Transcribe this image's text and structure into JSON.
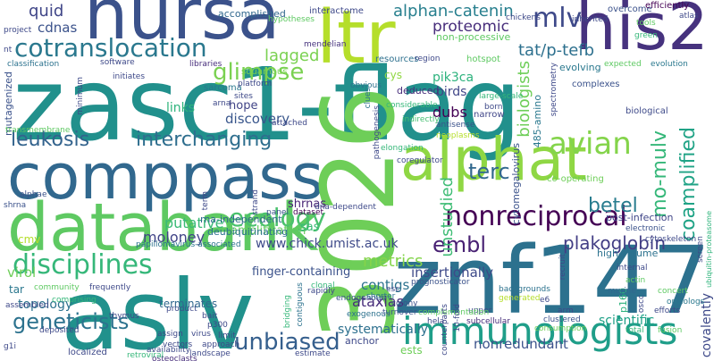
{
  "words": {
    "zasc1_flag": {
      "text": "zasc1-flag",
      "color": "#21908c"
    },
    "nursa": {
      "text": "nursa",
      "color": "#3b528b"
    },
    "compass": {
      "text": "comppass",
      "color": "#31688e"
    },
    "databank": {
      "text": "databank",
      "color": "#5ec962"
    },
    "aslv": {
      "text": "aslv",
      "color": "#21918c"
    },
    "n3026": {
      "text": "3026",
      "color": "#6ece58"
    },
    "znf147": {
      "text": "znf147",
      "color": "#2c718e"
    },
    "alphat": {
      "text": "alphat",
      "color": "#8fd744"
    },
    "ltr": {
      "text": "ltr",
      "color": "#b5de2b"
    },
    "his2": {
      "text": "his2",
      "color": "#46327e"
    },
    "immunologists": {
      "text": "immunologists",
      "color": "#1f9e89"
    },
    "cotranslocation": {
      "text": "cotranslocation",
      "color": "#2a788e"
    },
    "disciplines": {
      "text": "disciplines",
      "color": "#35b779"
    },
    "nonreciprocal": {
      "text": "nonreciprocal",
      "color": "#440154"
    },
    "avian": {
      "text": "avian",
      "color": "#84d44b"
    },
    "mlv": {
      "text": "mlv",
      "color": "#3e4989"
    },
    "glimpse": {
      "text": "glimpse",
      "color": "#7ad151"
    },
    "interchanging": {
      "text": "interchanging",
      "color": "#2e6e8e"
    },
    "leukosis": {
      "text": "leukosis",
      "color": "#33638d"
    },
    "ecology": {
      "text": "ecology",
      "color": "#4ac16d"
    },
    "geneticists": {
      "text": "geneticists",
      "color": "#2c728e"
    },
    "unbiased": {
      "text": "unbiased",
      "color": "#355f8d"
    },
    "embl": {
      "text": "embl",
      "color": "#482173"
    },
    "betel": {
      "text": "betel",
      "color": "#287c8e"
    },
    "terc": {
      "text": "terc",
      "color": "#31688e"
    },
    "coamplified": {
      "text": "coamplified",
      "color": "#20a386"
    },
    "mo_mulv": {
      "text": "mo-mulv",
      "color": "#35b779"
    },
    "plakoglobin": {
      "text": "plakoglobin",
      "color": "#433e85"
    },
    "alphan_catenin": {
      "text": "alphan-catenin",
      "color": "#277f8e"
    },
    "quid": {
      "text": "quid",
      "color": "#404688"
    },
    "cdnas": {
      "text": "cdnas",
      "color": "#3b528b"
    },
    "lagged": {
      "text": "lagged",
      "color": "#7ad151"
    },
    "tat_p_tefb": {
      "text": "tat/p-tefb",
      "color": "#2d708e"
    },
    "proteomic": {
      "text": "proteomic",
      "color": "#472d7b"
    },
    "biologists": {
      "text": "biologists",
      "color": "#6ece58"
    },
    "unstudied": {
      "text": "unstudied",
      "color": "#3dbc74"
    },
    "metrics": {
      "text": "metrics",
      "color": "#84d44b"
    },
    "moloney": {
      "text": "moloney",
      "color": "#414487"
    },
    "putative": {
      "text": "putative",
      "color": "#3aba76"
    },
    "virol": {
      "text": "virol",
      "color": "#6ece58"
    },
    "topology": {
      "text": "topology",
      "color": "#2c728e"
    },
    "contigs": {
      "text": "contigs",
      "color": "#2c728e"
    },
    "ataxias": {
      "text": "ataxias",
      "color": "#472c7a"
    },
    "dubs": {
      "text": "dubs",
      "color": "#440154"
    },
    "discovery": {
      "text": "discovery",
      "color": "#39568c"
    },
    "insertionally": {
      "text": "insertionally",
      "color": "#3e4a89"
    },
    "url": {
      "text": "www.chick.umist.ac.uk",
      "color": "#3e4a89"
    },
    "birds": {
      "text": "birds",
      "color": "#404688"
    },
    "pik3ca": {
      "text": "pik3ca",
      "color": "#2db27d"
    },
    "finger_containing": {
      "text": "finger-containing",
      "color": "#3b528b"
    },
    "amplification": {
      "text": "amplification",
      "color": "#63cb5f"
    },
    "systematically": {
      "text": "systematically",
      "color": "#2d708e"
    },
    "scientific": {
      "text": "scientific",
      "color": "#1fa187"
    },
    "nonredundant": {
      "text": "nonredundant",
      "color": "#3b528b"
    },
    "covalently": {
      "text": "covalently",
      "color": "#3e4989"
    },
    "shrnas": {
      "text": "shrnas",
      "color": "#482475"
    },
    "sas": {
      "text": "sas",
      "color": "#3aba76"
    },
    "tar": {
      "text": "tar",
      "color": "#2a778e"
    },
    "links": {
      "text": "links",
      "color": "#2fb47c"
    },
    "hope": {
      "text": "hope",
      "color": "#414487"
    },
    "cmv": {
      "text": "cmv",
      "color": "#b5de2b"
    },
    "ests": {
      "text": "ests",
      "color": "#6ece58"
    },
    "rna_independent": {
      "text": "rna-independent",
      "color": "#31688e"
    },
    "p160": {
      "text": "p160",
      "color": "#2db27d"
    },
    "accomplished": {
      "text": "accomplished",
      "color": "#31688e"
    },
    "interactome": {
      "text": "interactome",
      "color": "#3e4989"
    },
    "non_processive": {
      "text": "non-processive",
      "color": "#5ec962"
    },
    "cytomegalovirus": {
      "text": "cytomegalovirus",
      "color": "#3b528b"
    },
    "mutagenized": {
      "text": "mutagenized",
      "color": "#3b528b"
    },
    "post_infection": {
      "text": "post-infection",
      "color": "#404688"
    },
    "high_volume": {
      "text": "high-volume",
      "color": "#2c728e"
    },
    "deubiquitinating": {
      "text": "deubiquitinating",
      "color": "#2d708e"
    },
    "transmembrane": {
      "text": "transmembrane",
      "color": "#5ec962"
    },
    "amino_485": {
      "text": "485-amino",
      "color": "#2a788e"
    },
    "overcome": {
      "text": "overcome",
      "color": "#3b528b"
    },
    "efficiently": {
      "text": "efficiently",
      "color": "#440154"
    },
    "cys": {
      "text": "cys",
      "color": "#90d743"
    },
    "sarcoma": {
      "text": "sarcoma",
      "color": "#2a788e"
    },
    "resources": {
      "text": "resources",
      "color": "#2d708e"
    },
    "hotspot": {
      "text": "hotspot",
      "color": "#5ec962"
    },
    "deduced": {
      "text": "deduced",
      "color": "#472d7b"
    },
    "evolving": {
      "text": "evolving",
      "color": "#2a788e"
    },
    "complexes": {
      "text": "complexes",
      "color": "#3b528b"
    },
    "evolution": {
      "text": "evolution",
      "color": "#2a788e"
    },
    "biological": {
      "text": "biological",
      "color": "#3e4a89"
    },
    "narrow": {
      "text": "narrow",
      "color": "#404688"
    },
    "spectrometry": {
      "text": "spectrometry",
      "color": "#3e4989"
    },
    "platform": {
      "text": "platform",
      "color": "#3e4989"
    },
    "squamous": {
      "text": "squamous",
      "color": "#7ad151"
    },
    "classification": {
      "text": "classification",
      "color": "#2c728e"
    },
    "software": {
      "text": "software",
      "color": "#3e4989"
    },
    "libraries": {
      "text": "libraries",
      "color": "#472d7b"
    },
    "mendelian": {
      "text": "mendelian",
      "color": "#46337e"
    },
    "considerable": {
      "text": "considerable",
      "color": "#35b779"
    },
    "antisense": {
      "text": "antisense",
      "color": "#3b528b"
    },
    "borne": {
      "text": "born",
      "color": "#3e4a89"
    },
    "indirectly": {
      "text": "indirectly",
      "color": "#44bf70"
    },
    "neoplasms": {
      "text": "neoplasms",
      "color": "#b5de2b"
    },
    "clues": {
      "text": "clues",
      "color": "#2c728e"
    },
    "obvious": {
      "text": "obvious",
      "color": "#2c728e"
    },
    "large_scale": {
      "text": "large-scale",
      "color": "#35b779"
    },
    "elongation": {
      "text": "elongation",
      "color": "#35b779"
    },
    "coregulator": {
      "text": "coregulator",
      "color": "#3e4989"
    },
    "co_operating": {
      "text": "co-operating",
      "color": "#6ece58"
    },
    "electronic": {
      "text": "electronic",
      "color": "#3b528b"
    },
    "cytoskeleton": {
      "text": "cytoskeleton",
      "color": "#3e4989"
    },
    "ubiquitin_proteasome": {
      "text": "ubiquitin-proteasome",
      "color": "#2fb47c"
    },
    "dataset": {
      "text": "dataset",
      "color": "#440154"
    },
    "dna_dependent": {
      "text": "dna-dependent",
      "color": "#3e4989"
    },
    "panel": {
      "text": "panel",
      "color": "#3b528b"
    },
    "papillomavirus": {
      "text": "papillomavirus-associated",
      "color": "#2c728e"
    },
    "frequently": {
      "text": "frequently",
      "color": "#3e4989"
    },
    "community": {
      "text": "community",
      "color": "#5ec962"
    },
    "shrna": {
      "text": "shrna",
      "color": "#3b528b"
    },
    "alphae": {
      "text": "alphae",
      "color": "#3b528b"
    },
    "clonal": {
      "text": "clonal",
      "color": "#35b779"
    },
    "contiguous": {
      "text": "contiguous",
      "color": "#2c728e"
    },
    "prognosticator": {
      "text": "prognosticator",
      "color": "#3b528b"
    },
    "backgrounds": {
      "text": "backgrounds",
      "color": "#2c728e"
    },
    "generated": {
      "text": "generated",
      "color": "#b5de2b"
    },
    "murine": {
      "text": "murine",
      "color": "#31688e"
    },
    "concert": {
      "text": "concert",
      "color": "#5ec962"
    },
    "orthologs": {
      "text": "orthologs",
      "color": "#2a788e"
    },
    "efforts": {
      "text": "efforts",
      "color": "#3e4989"
    },
    "fusion": {
      "text": "fusion",
      "color": "#5ec962"
    },
    "oscc": {
      "text": "oscc",
      "color": "#3e4989"
    },
    "total": {
      "text": "total",
      "color": "#35b779"
    },
    "upper": {
      "text": "upper",
      "color": "#3e4989"
    },
    "subcellular": {
      "text": "subcellular",
      "color": "#472d7b"
    },
    "clustered": {
      "text": "clustered",
      "color": "#3b528b"
    },
    "consumption": {
      "text": "consumption",
      "color": "#6ece58"
    },
    "exogenous": {
      "text": "exogenous",
      "color": "#2c728e"
    },
    "endogenous": {
      "text": "endogenous",
      "color": "#3b528b"
    },
    "turnover": {
      "text": "turnover",
      "color": "#3b528b"
    },
    "complementation": {
      "text": "complementation",
      "color": "#5ec962"
    },
    "shorter": {
      "text": "shorter",
      "color": "#2c728e"
    },
    "colony": {
      "text": "colony",
      "color": "#3b528b"
    },
    "p300": {
      "text": "p300",
      "color": "#3e4989"
    },
    "vectors": {
      "text": "vectors",
      "color": "#3e4989"
    },
    "approach": {
      "text": "approach",
      "color": "#3e4989"
    },
    "assign": {
      "text": "assign",
      "color": "#3e4989"
    },
    "virus": {
      "text": "virus",
      "color": "#3e4989"
    },
    "bait": {
      "text": "bait",
      "color": "#3e4989"
    },
    "product": {
      "text": "product",
      "color": "#3e4989"
    },
    "terminates": {
      "text": "terminates",
      "color": "#31688e"
    },
    "anchor": {
      "text": "anchor",
      "color": "#3e4989"
    },
    "osteoclasts": {
      "text": "osteoclasts",
      "color": "#472d7b"
    },
    "availability": {
      "text": "availability",
      "color": "#3e4989"
    },
    "landscape": {
      "text": "landscape",
      "color": "#3e4989"
    },
    "localized": {
      "text": "localized",
      "color": "#3e4989"
    },
    "retroviral": {
      "text": "retroviral",
      "color": "#35b779"
    },
    "deposited": {
      "text": "deposited",
      "color": "#3e4989"
    },
    "assembled": {
      "text": "assembled",
      "color": "#3e4989"
    },
    "comprising": {
      "text": "comprising",
      "color": "#35b779"
    },
    "thymus": {
      "text": "thymus",
      "color": "#3e4989"
    },
    "limit": {
      "text": "limit",
      "color": "#3e4989"
    },
    "estimate": {
      "text": "estimate",
      "color": "#3e4989"
    },
    "rapidly": {
      "text": "rapidly",
      "color": "#3e4989"
    },
    "bridging": {
      "text": "bridging",
      "color": "#35b779"
    },
    "g1i": {
      "text": "g1i",
      "color": "#3e4989"
    },
    "project": {
      "text": "project",
      "color": "#3e4989"
    },
    "nt": {
      "text": "nt",
      "color": "#3e4989"
    },
    "chickens": {
      "text": "chickens",
      "color": "#3e4989"
    },
    "hypotheses": {
      "text": "hypotheses",
      "color": "#5ec962"
    },
    "inherited": {
      "text": "inherited",
      "color": "#3e4989"
    },
    "tools": {
      "text": "tools",
      "color": "#5ec962"
    },
    "atlas": {
      "text": "atlas",
      "color": "#3e4989"
    },
    "green": {
      "text": "green",
      "color": "#35b779"
    },
    "expected": {
      "text": "expected",
      "color": "#5ec962"
    },
    "region": {
      "text": "region",
      "color": "#3e4989"
    },
    "arna": {
      "text": "arna",
      "color": "#3e4989"
    },
    "sites": {
      "text": "sites",
      "color": "#3e4989"
    },
    "attached": {
      "text": "attached",
      "color": "#3e4989"
    },
    "pathogenesis": {
      "text": "pathogenesis",
      "color": "#3e4989"
    },
    "internal": {
      "text": "internal",
      "color": "#3e4989"
    },
    "actin": {
      "text": "actin",
      "color": "#5ec962"
    },
    "recruit": {
      "text": "recruit",
      "color": "#3e4989"
    },
    "initiates": {
      "text": "initiates",
      "color": "#3e4989"
    },
    "minimum": {
      "text": "minimum",
      "color": "#3e4989"
    },
    "screen": {
      "text": "screen",
      "color": "#3e4989"
    },
    "strand": {
      "text": "strand",
      "color": "#3e4989"
    },
    "esc": {
      "text": "esc",
      "color": "#3e4989"
    },
    "hela": {
      "text": "hela",
      "color": "#3e4989"
    },
    "e6": {
      "text": "e6",
      "color": "#3e4989"
    },
    "arm": {
      "text": "arm",
      "color": "#3e4989"
    },
    "fold_10": {
      "text": "10-fold",
      "color": "#3e4989"
    },
    "counterparts": {
      "text": "counterparts",
      "color": "#3e4989"
    },
    "term": {
      "text": "term",
      "color": "#3e4989"
    },
    "proto_oncogenes": {
      "text": "proto-oncogenes",
      "color": "#b5de2b"
    },
    "spleen": {
      "text": "spleen",
      "color": "#b5de2b"
    },
    "mendelizn": {
      "text": "hendelian",
      "color": "#b5de2b"
    },
    "trapped_like": {
      "text": "trapped-like",
      "color": "#3e4989"
    },
    "remove": {
      "text": "remove",
      "color": "#3e4989"
    },
    "clarify": {
      "text": "clarify",
      "color": "#3e4989"
    },
    "assays_x": {
      "text": "assays",
      "color": "#3e4989"
    },
    "ontogenic": {
      "text": "ontogenic",
      "color": "#b5de2b"
    },
    "only": {
      "text": "only",
      "color": "#b5de2b"
    },
    "gene": {
      "text": "gene",
      "color": "#3e4989"
    },
    "sites2": {
      "text": "leukocyte",
      "color": "#b5de2b"
    }
  }
}
